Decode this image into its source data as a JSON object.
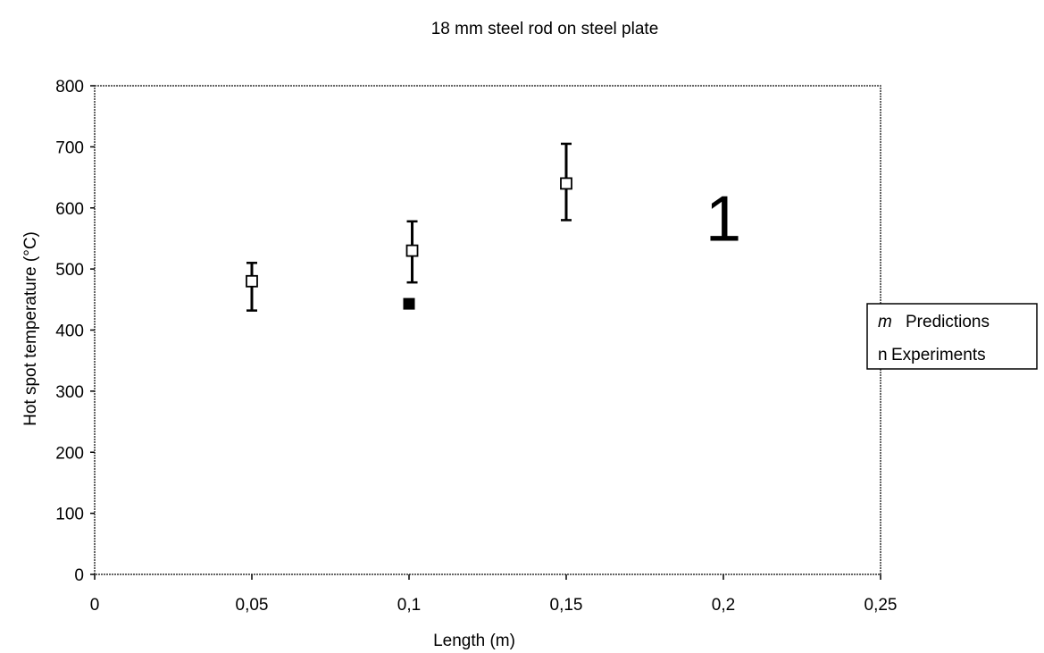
{
  "chart_data": {
    "type": "scatter",
    "title": "18 mm steel rod on steel plate",
    "xlabel": "Length (m)",
    "ylabel": "Hot spot temperature (°C)",
    "xlim": [
      0,
      0.25
    ],
    "ylim": [
      0,
      800
    ],
    "x_ticks": [
      "0",
      "0,05",
      "0,1",
      "0,15",
      "0,2",
      "0,25"
    ],
    "y_ticks": [
      "0",
      "100",
      "200",
      "300",
      "400",
      "500",
      "600",
      "700",
      "800"
    ],
    "grid": false,
    "legend_position": "right",
    "series": [
      {
        "name": "Predictions",
        "marker": "open-square",
        "points": [
          {
            "x": 0.05,
            "y": 480,
            "err_low": 432,
            "err_high": 510
          },
          {
            "x": 0.101,
            "y": 530,
            "err_low": 478,
            "err_high": 578
          },
          {
            "x": 0.15,
            "y": 640,
            "err_low": 580,
            "err_high": 705
          }
        ]
      },
      {
        "name": "Experiments",
        "marker": "filled-square",
        "points": [
          {
            "x": 0.1,
            "y": 443
          }
        ]
      }
    ],
    "extra_marks": [
      {
        "text": "1",
        "x": 0.2,
        "y": 590
      }
    ],
    "legend_entries": [
      {
        "symbol": "m",
        "label": "Predictions"
      },
      {
        "symbol": "n",
        "label": "Experiments"
      }
    ]
  }
}
